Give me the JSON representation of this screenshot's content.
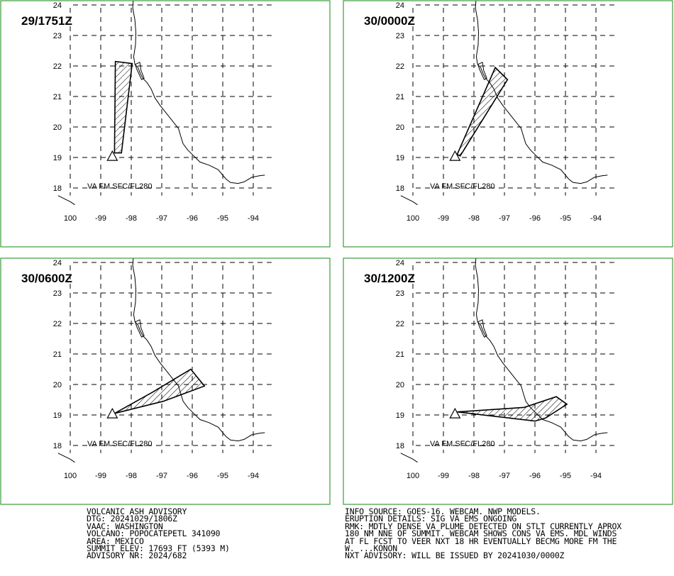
{
  "colors": {
    "frame": "#118811",
    "coast": "#000000",
    "grid": "#000000",
    "plume": "#000000"
  },
  "map": {
    "lat_labels": [
      "24",
      "23",
      "22",
      "21",
      "20",
      "19",
      "18"
    ],
    "lon_labels": [
      "100",
      "-99",
      "-98",
      "-97",
      "-96",
      "-95",
      "-94"
    ],
    "level_label": "VA FM SFC/FL280",
    "volcano_symbol": "volcano-triangle-icon",
    "volcano_location": {
      "lon": -98.62,
      "lat": 19.02
    }
  },
  "panels": [
    {
      "time": "29/1751Z",
      "plume": [
        [
          -98.55,
          19.15
        ],
        [
          -98.52,
          22.15
        ],
        [
          -97.97,
          22.08
        ],
        [
          -98.32,
          19.15
        ]
      ]
    },
    {
      "time": "30/0000Z",
      "plume": [
        [
          -98.55,
          19.1
        ],
        [
          -97.3,
          21.95
        ],
        [
          -96.9,
          21.55
        ],
        [
          -98.45,
          19.05
        ]
      ]
    },
    {
      "time": "30/0600Z",
      "plume": [
        [
          -98.55,
          19.05
        ],
        [
          -97.3,
          19.75
        ],
        [
          -96.05,
          20.5
        ],
        [
          -95.6,
          19.95
        ],
        [
          -96.95,
          19.45
        ]
      ]
    },
    {
      "time": "30/1200Z",
      "plume": [
        [
          -98.55,
          19.1
        ],
        [
          -96.35,
          19.25
        ],
        [
          -95.3,
          19.6
        ],
        [
          -94.95,
          19.35
        ],
        [
          -95.65,
          18.9
        ],
        [
          -96.0,
          18.8
        ]
      ]
    }
  ],
  "coastline": [
    [
      -97.92,
      24.35
    ],
    [
      -97.95,
      23.9
    ],
    [
      -97.88,
      23.5
    ],
    [
      -97.85,
      23.1
    ],
    [
      -97.86,
      22.7
    ],
    [
      -97.92,
      22.3
    ],
    [
      -97.88,
      22.05
    ],
    [
      -97.78,
      21.95
    ],
    [
      -97.7,
      21.75
    ],
    [
      -97.62,
      21.6
    ],
    [
      -97.48,
      21.45
    ],
    [
      -97.35,
      21.25
    ],
    [
      -97.22,
      20.95
    ],
    [
      -97.05,
      20.7
    ],
    [
      -96.85,
      20.45
    ],
    [
      -96.65,
      20.2
    ],
    [
      -96.45,
      19.95
    ],
    [
      -96.38,
      19.7
    ],
    [
      -96.3,
      19.45
    ],
    [
      -96.15,
      19.25
    ],
    [
      -95.95,
      19.05
    ],
    [
      -95.75,
      18.85
    ],
    [
      -95.45,
      18.75
    ],
    [
      -95.15,
      18.6
    ],
    [
      -94.9,
      18.3
    ],
    [
      -94.75,
      18.18
    ],
    [
      -94.5,
      18.15
    ],
    [
      -94.3,
      18.2
    ],
    [
      -94.05,
      18.35
    ],
    [
      -93.8,
      18.4
    ],
    [
      -93.62,
      18.42
    ]
  ],
  "lagoon": [
    [
      -97.87,
      22.05
    ],
    [
      -97.72,
      22.12
    ],
    [
      -97.68,
      21.85
    ],
    [
      -97.58,
      21.6
    ],
    [
      -97.66,
      21.55
    ],
    [
      -97.82,
      21.9
    ],
    [
      -97.87,
      22.05
    ]
  ],
  "west_coast": [
    [
      -100.4,
      17.75
    ],
    [
      -100.2,
      17.65
    ],
    [
      -100.0,
      17.55
    ],
    [
      -99.85,
      17.45
    ]
  ],
  "footer_left": [
    "VOLCANIC ASH ADVISORY",
    "DTG: 20241029/1806Z",
    "VAAC: WASHINGTON",
    "VOLCANO: POPOCATEPETL 341090",
    "AREA: MEXICO",
    "SUMMIT ELEV: 17693 FT (5393 M)",
    "ADVISORY NR: 2024/682"
  ],
  "footer_right": [
    "INFO SOURCE: GOES-16. WEBCAM. NWP MODELS.",
    "ERUPTION DETAILS: SIG VA EMS ONGOING",
    "RMK: MDTLY DENSE VA PLUME DETECTED ON STLT CURRENTLY APROX",
    "180 NM NNE OF SUMMIT. WEBCAM SHOWS CONS VA EMS. MDL WINDS",
    "AT FL FCST TO VEER NXT 18 HR EVENTUALLY BECMG MORE FM THE",
    "W. ...KONON",
    "NXT ADVISORY: WILL BE ISSUED BY 20241030/0000Z"
  ]
}
